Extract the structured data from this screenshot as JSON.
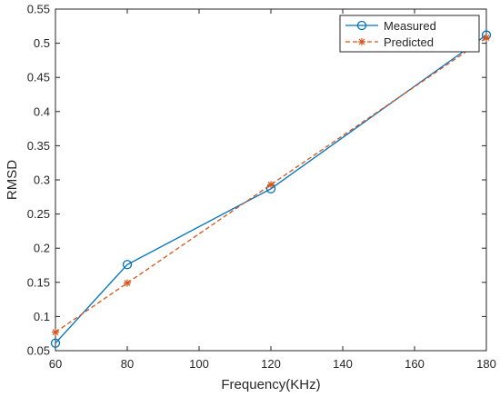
{
  "chart_data": {
    "type": "line",
    "xlabel": "Frequency(KHz)",
    "ylabel": "RMSD",
    "xlim": [
      60,
      180
    ],
    "ylim": [
      0.05,
      0.55
    ],
    "xticks": [
      60,
      80,
      100,
      120,
      140,
      160,
      180
    ],
    "yticks": [
      0.05,
      0.1,
      0.15,
      0.2,
      0.25,
      0.3,
      0.35,
      0.4,
      0.45,
      0.5,
      0.55
    ],
    "xtick_labels": [
      "60",
      "80",
      "100",
      "120",
      "140",
      "160",
      "180"
    ],
    "ytick_labels": [
      "0.05",
      "0.1",
      "0.15",
      "0.2",
      "0.25",
      "0.3",
      "0.35",
      "0.4",
      "0.45",
      "0.5",
      "0.55"
    ],
    "grid": false,
    "legend": "top-right",
    "series": [
      {
        "name": "Measured",
        "x": [
          60,
          80,
          120,
          180
        ],
        "values": [
          0.061,
          0.176,
          0.287,
          0.512
        ],
        "color": "#0072BD",
        "linestyle": "solid",
        "marker": "circle"
      },
      {
        "name": "Predicted",
        "x": [
          60,
          80,
          120,
          180
        ],
        "values": [
          0.077,
          0.149,
          0.293,
          0.508
        ],
        "color": "#D95319",
        "linestyle": "dashed",
        "marker": "asterisk"
      }
    ]
  }
}
